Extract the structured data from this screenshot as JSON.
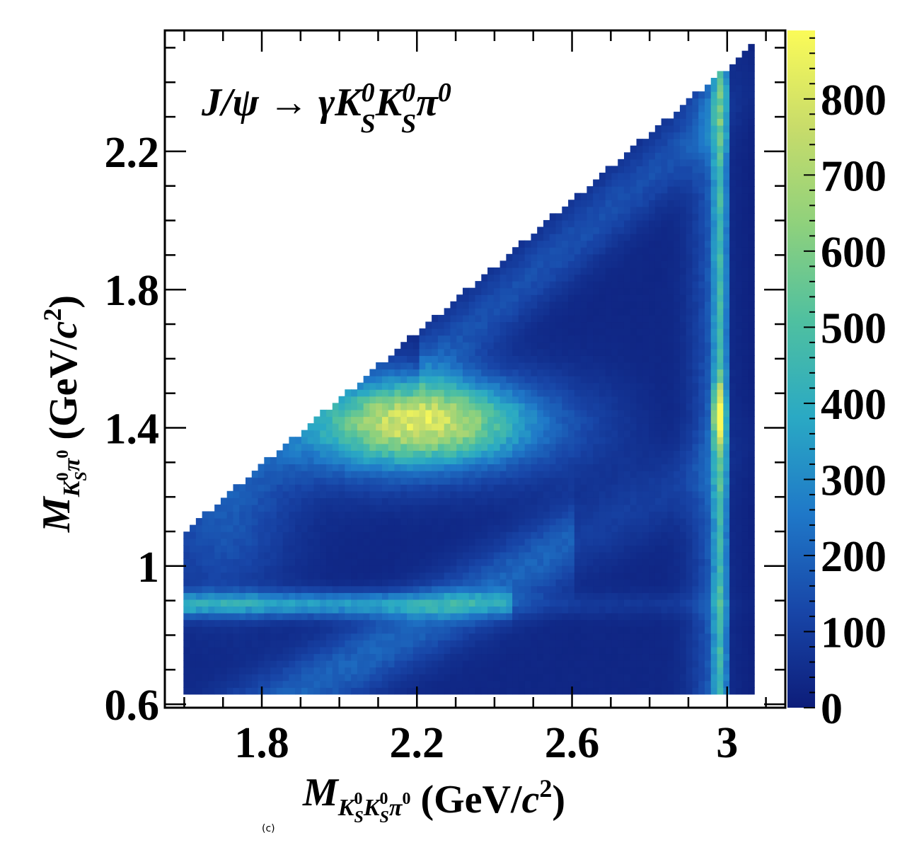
{
  "chart_data": {
    "type": "heatmap",
    "annotation": "J/ψ → γK_S^0 K_S^0 π^0",
    "xlabel": "M_{K_S^0 K_S^0 π^0} (GeV/c^2)",
    "ylabel": "M_{K_S^0 π^0} (GeV/c^2)",
    "xlim": [
      1.55,
      3.15
    ],
    "ylim": [
      0.59,
      2.55
    ],
    "x_ticks": [
      "1.8",
      "2.2",
      "2.6",
      "3"
    ],
    "y_ticks": [
      "0.6",
      "1",
      "1.4",
      "1.8",
      "2.2"
    ],
    "colorbar": {
      "range": [
        0,
        890
      ],
      "ticks": [
        "0",
        "100",
        "200",
        "300",
        "400",
        "500",
        "600",
        "700",
        "800"
      ],
      "colors": [
        "#0d1d7a",
        "#1846a8",
        "#1f78c8",
        "#2aa9c4",
        "#4fc0a0",
        "#8fd17c",
        "#c8dc6a",
        "#fbfb58"
      ]
    },
    "features": [
      {
        "name": "phase-space boundary",
        "x_range": [
          1.6,
          3.07
        ],
        "y_min": 0.63
      },
      {
        "name": "vertical band",
        "x": 2.98,
        "peak_y": 1.44,
        "peak_z": 850
      },
      {
        "name": "horizontal band",
        "y": 0.89,
        "x_range": [
          1.6,
          2.4
        ],
        "peak_z": 420
      },
      {
        "name": "broad enhancement",
        "x": 2.2,
        "y": 1.42,
        "peak_z": 600
      }
    ],
    "panel_label": "(c)"
  }
}
